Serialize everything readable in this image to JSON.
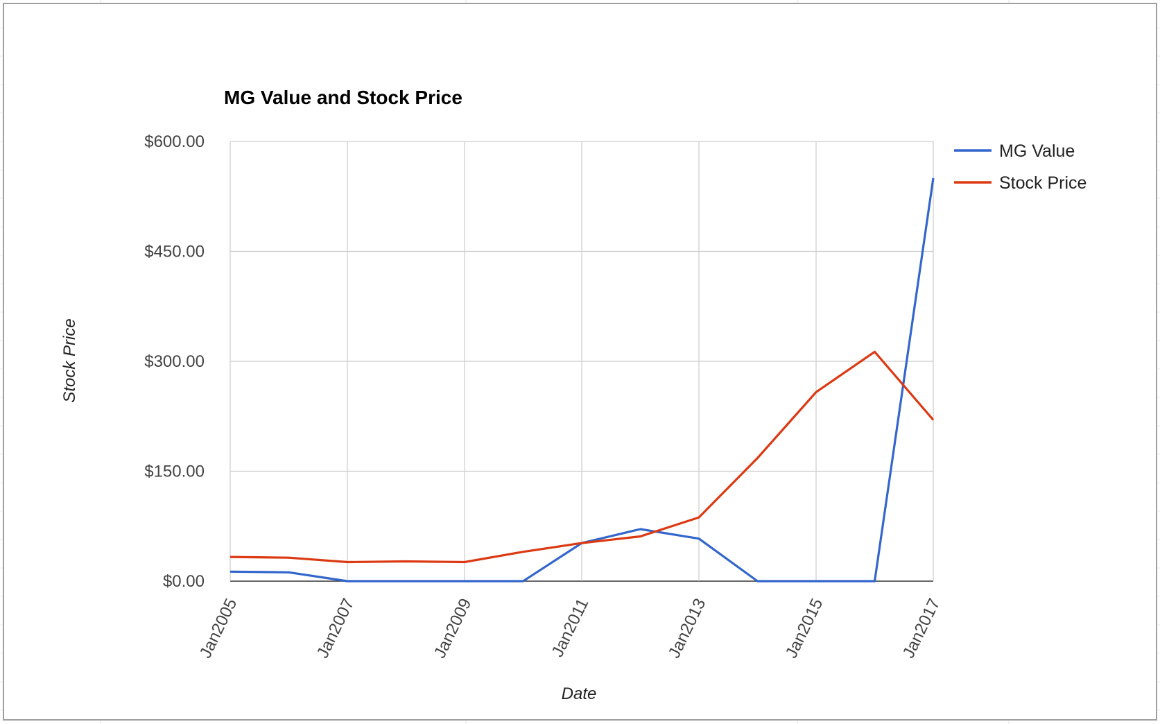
{
  "chart_data": {
    "type": "line",
    "title": "MG Value and Stock Price",
    "xlabel": "Date",
    "ylabel": "Stock Price",
    "x": [
      "Jan2005",
      "Jan2006",
      "Jan2007",
      "Jan2008",
      "Jan2009",
      "Jan2010",
      "Jan2011",
      "Jan2012",
      "Jan2013",
      "Jan2014",
      "Jan2015",
      "Jan2016",
      "Jan2017"
    ],
    "xticks": [
      "Jan2005",
      "Jan2007",
      "Jan2009",
      "Jan2011",
      "Jan2013",
      "Jan2015",
      "Jan2017"
    ],
    "yticks": [
      {
        "value": 0,
        "label": "$0.00"
      },
      {
        "value": 150,
        "label": "$150.00"
      },
      {
        "value": 300,
        "label": "$300.00"
      },
      {
        "value": 450,
        "label": "$450.00"
      },
      {
        "value": 600,
        "label": "$600.00"
      }
    ],
    "ylim": [
      0,
      600
    ],
    "grid": true,
    "legend_position": "right",
    "series": [
      {
        "name": "MG Value",
        "color": "#3366cc",
        "values": [
          13,
          12,
          0,
          0,
          0,
          0,
          52,
          71,
          58,
          0,
          0,
          0,
          550
        ]
      },
      {
        "name": "Stock Price",
        "color": "#dc3912",
        "values": [
          33,
          32,
          26,
          27,
          26,
          40,
          52,
          61,
          87,
          168,
          258,
          313,
          220
        ]
      }
    ]
  }
}
